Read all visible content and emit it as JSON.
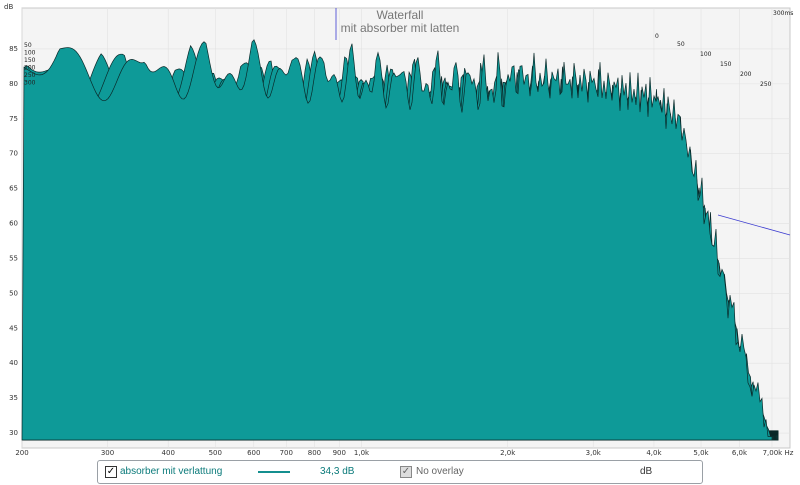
{
  "chart_data": {
    "type": "area",
    "title": "Waterfall",
    "subtitle": "mit absorber mit latten",
    "ylabel": "dB",
    "xlabel_unit": "Hz",
    "x_scale": "log",
    "xlim": [
      200,
      7000
    ],
    "ylim": [
      29,
      88
    ],
    "y_ticks": [
      "30",
      "35",
      "40",
      "45",
      "50",
      "55",
      "60",
      "65",
      "70",
      "75",
      "80",
      "85"
    ],
    "x_ticks": [
      {
        "label": "200",
        "value": 200
      },
      {
        "label": "300",
        "value": 300
      },
      {
        "label": "400",
        "value": 400
      },
      {
        "label": "500",
        "value": 500
      },
      {
        "label": "600",
        "value": 600
      },
      {
        "label": "700",
        "value": 700
      },
      {
        "label": "800",
        "value": 800
      },
      {
        "label": "900",
        "value": 900
      },
      {
        "label": "1,0k",
        "value": 1000
      },
      {
        "label": "2,0k",
        "value": 2000
      },
      {
        "label": "3,0k",
        "value": 3000
      },
      {
        "label": "4,0k",
        "value": 4000
      },
      {
        "label": "5,0k",
        "value": 5000
      },
      {
        "label": "6,0k",
        "value": 6000
      },
      {
        "label": "7,00k Hz",
        "value": 7000
      }
    ],
    "depth_axis_unit": "ms",
    "depth_ticks": [
      "0",
      "50",
      "100",
      "150",
      "200",
      "250",
      "300ms"
    ],
    "depth_ticks_left": [
      "50",
      "100",
      "150",
      "200",
      "250",
      "300"
    ],
    "slices": 40,
    "fill_color": "#0e9a98",
    "line_color": "#0a2a2a",
    "envelope_front": [
      {
        "hz": 200,
        "db": 86
      },
      {
        "hz": 300,
        "db": 85
      },
      {
        "hz": 500,
        "db": 85
      },
      {
        "hz": 700,
        "db": 85
      },
      {
        "hz": 1000,
        "db": 84
      },
      {
        "hz": 2000,
        "db": 83
      },
      {
        "hz": 3000,
        "db": 82
      },
      {
        "hz": 4000,
        "db": 80
      },
      {
        "hz": 4500,
        "db": 77
      },
      {
        "hz": 5000,
        "db": 66
      },
      {
        "hz": 6000,
        "db": 45
      },
      {
        "hz": 7000,
        "db": 30
      }
    ]
  },
  "legend": {
    "series_label": "absorber mit verlattung",
    "series_value": "34,3 dB",
    "overlay_label": "No overlay",
    "unit": "dB"
  },
  "check_mark": "✓"
}
